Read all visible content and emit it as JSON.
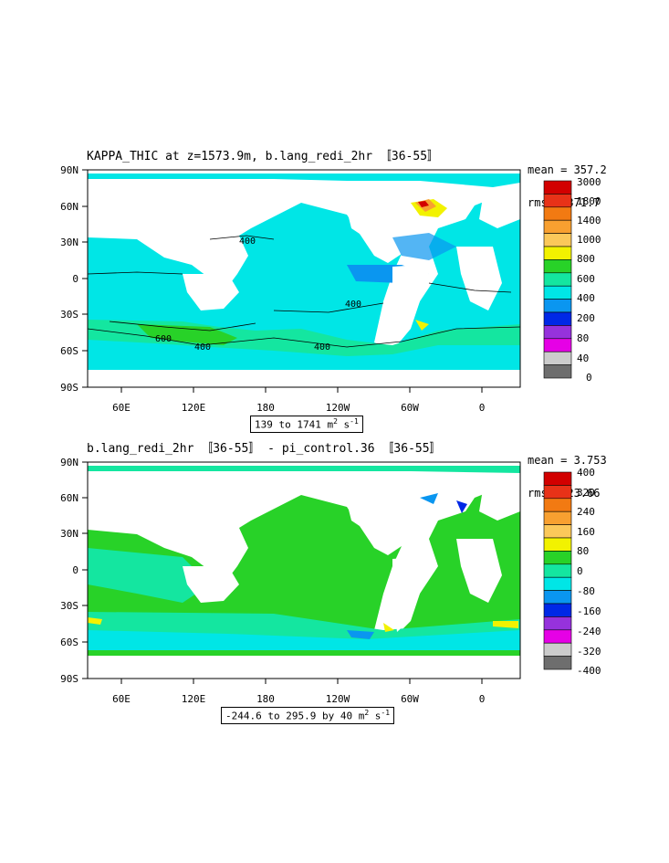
{
  "panels": [
    {
      "title": "KAPPA_THIC at z=1573.9m, b.lang_redi_2hr 〚36-55〛",
      "stats": {
        "mean": "mean = 357.2",
        "rms": "rms = 371.7"
      },
      "range_label": "139 to 1741 m",
      "range_unit_sup": "2",
      "range_unit_tail": " s",
      "range_unit_sup2": "-1",
      "colorbar_labels": [
        "3000",
        "1800",
        "1400",
        "1000",
        "800",
        "600",
        "400",
        "200",
        "80",
        "40",
        "0"
      ],
      "colorbar_colors": [
        "#d20000",
        "#e83218",
        "#f27a12",
        "#f8a030",
        "#fbc85a",
        "#f2f200",
        "#28d228",
        "#14e6a0",
        "#00e6e6",
        "#0a96f0",
        "#0028e6",
        "#9632dc",
        "#e600e6",
        "#cccccc",
        "#6e6e6e"
      ],
      "contour_labels": [
        "400",
        "400",
        "400",
        "400",
        "600"
      ]
    },
    {
      "title": "b.lang_redi_2hr 〚36-55〛 - pi_control.36 〚36-55〛",
      "stats": {
        "mean": "mean = 3.753",
        "rms": "rms = 23.66"
      },
      "range_label": "-244.6 to 295.9 by 40 m",
      "range_unit_sup": "2",
      "range_unit_tail": " s",
      "range_unit_sup2": "-1",
      "colorbar_labels": [
        "400",
        "320",
        "240",
        "160",
        "80",
        "0",
        "-80",
        "-160",
        "-240",
        "-320",
        "-400"
      ],
      "colorbar_colors": [
        "#d20000",
        "#e83218",
        "#f27a12",
        "#f8a030",
        "#fbc85a",
        "#f2f200",
        "#28d228",
        "#14e6a0",
        "#00e6e6",
        "#0a96f0",
        "#0028e6",
        "#9632dc",
        "#e600e6",
        "#cccccc",
        "#6e6e6e"
      ]
    }
  ],
  "lat_ticks": [
    "90N",
    "60N",
    "30N",
    "0",
    "30S",
    "60S",
    "90S"
  ],
  "lon_ticks": [
    "60E",
    "120E",
    "180",
    "120W",
    "60W",
    "0"
  ]
}
